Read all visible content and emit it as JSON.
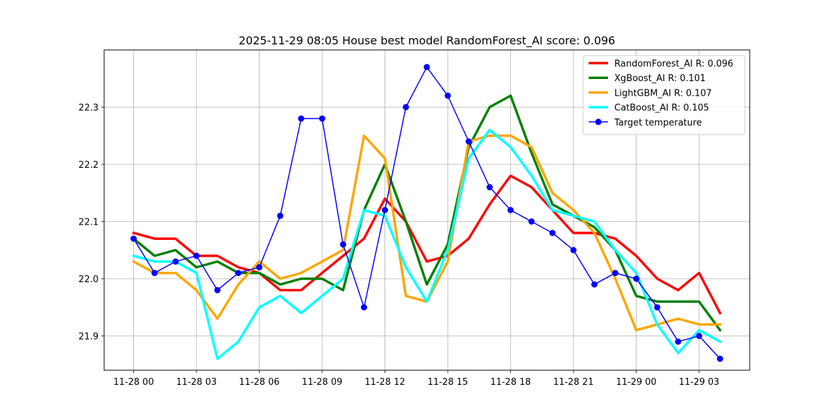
{
  "chart_data": {
    "type": "line",
    "title": "2025-11-29 08:05 House best model RandomForest_AI score: 0.096",
    "xlabel": "",
    "ylabel": "",
    "x_ticks": [
      "11-28 00",
      "11-28 03",
      "11-28 06",
      "11-28 09",
      "11-28 12",
      "11-28 15",
      "11-28 18",
      "11-28 21",
      "11-29 00",
      "11-29 03"
    ],
    "x_hours": [
      0,
      1,
      2,
      3,
      4,
      5,
      6,
      7,
      8,
      9,
      10,
      11,
      12,
      13,
      14,
      15,
      16,
      17,
      18,
      19,
      20,
      21,
      22,
      23,
      24,
      25,
      26,
      27,
      28
    ],
    "ylim": [
      21.84,
      22.4
    ],
    "y_ticks": [
      21.9,
      22.0,
      22.1,
      22.2,
      22.3
    ],
    "grid": true,
    "legend_position": "top-right",
    "series": [
      {
        "name": "RandomForest_AI R: 0.096",
        "color": "#ff0000",
        "marker": false,
        "width": 3.5,
        "values": [
          22.08,
          22.07,
          22.07,
          22.04,
          22.04,
          22.02,
          22.01,
          21.98,
          21.98,
          22.01,
          22.04,
          22.07,
          22.14,
          22.1,
          22.03,
          22.04,
          22.07,
          22.13,
          22.18,
          22.16,
          22.12,
          22.08,
          22.08,
          22.07,
          22.04,
          22.0,
          21.98,
          22.01,
          21.94
        ]
      },
      {
        "name": "XgBoost_AI R: 0.101",
        "color": "#008000",
        "marker": false,
        "width": 3.5,
        "values": [
          22.07,
          22.04,
          22.05,
          22.02,
          22.03,
          22.01,
          22.01,
          21.99,
          22.0,
          22.0,
          21.98,
          22.12,
          22.2,
          22.1,
          21.99,
          22.06,
          22.23,
          22.3,
          22.32,
          22.22,
          22.13,
          22.11,
          22.09,
          22.05,
          21.97,
          21.96,
          21.96,
          21.96,
          21.91
        ]
      },
      {
        "name": "LightGBM_AI R: 0.107",
        "color": "#ffa500",
        "marker": false,
        "width": 3.5,
        "values": [
          22.03,
          22.01,
          22.01,
          21.98,
          21.93,
          21.99,
          22.03,
          22.0,
          22.01,
          22.03,
          22.05,
          22.25,
          22.21,
          21.97,
          21.96,
          22.03,
          22.24,
          22.25,
          22.25,
          22.23,
          22.15,
          22.12,
          22.08,
          22.0,
          21.91,
          21.92,
          21.93,
          21.92,
          21.92
        ]
      },
      {
        "name": "CatBoost_AI R: 0.105",
        "color": "#00ffff",
        "marker": false,
        "width": 3.5,
        "values": [
          22.04,
          22.03,
          22.03,
          22.01,
          21.86,
          21.89,
          21.95,
          21.97,
          21.94,
          21.97,
          22.0,
          22.12,
          22.11,
          22.02,
          21.96,
          22.05,
          22.21,
          22.26,
          22.23,
          22.18,
          22.12,
          22.11,
          22.1,
          22.05,
          22.01,
          21.92,
          21.87,
          21.91,
          21.89
        ]
      },
      {
        "name": "Target temperature",
        "color": "#0000ff",
        "marker": true,
        "width": 1.5,
        "values": [
          22.07,
          22.01,
          22.03,
          22.04,
          21.98,
          22.01,
          22.02,
          22.11,
          22.28,
          22.28,
          22.06,
          21.95,
          22.12,
          22.3,
          22.37,
          22.32,
          22.24,
          22.16,
          22.12,
          22.1,
          22.08,
          22.05,
          21.99,
          22.01,
          22.0,
          21.95,
          21.89,
          21.9,
          21.86
        ]
      }
    ]
  }
}
